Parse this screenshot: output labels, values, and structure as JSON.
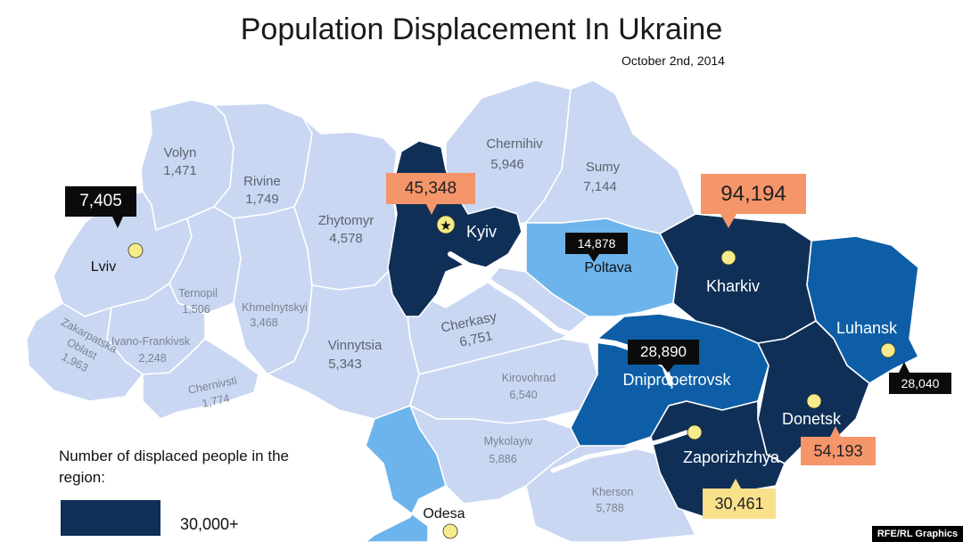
{
  "title": "Population Displacement In Ukraine",
  "date": "October 2nd, 2014",
  "colors": {
    "light": "#c9d7f2",
    "medium": "#6db4ec",
    "dark_blue": "#0d5ea6",
    "navy": "#0f2f57",
    "orange_callout": "#f5956a",
    "yellow_callout": "#f9e08a",
    "black_callout": "#0b0b0b",
    "city_dot": "#f5eb8a"
  },
  "regions": {
    "volyn": {
      "name": "Volyn",
      "value": "1,471"
    },
    "rivine": {
      "name": "Rivine",
      "value": "1,749"
    },
    "zhytomyr": {
      "name": "Zhytomyr",
      "value": "4,578"
    },
    "chernihiv": {
      "name": "Chernihiv",
      "value": "5,946"
    },
    "sumy": {
      "name": "Sumy",
      "value": "7,144"
    },
    "lviv": {
      "name": "Lviv",
      "value": "7,405"
    },
    "ternopil": {
      "name": "Ternopil",
      "value": "1,506"
    },
    "khmelnytskyi": {
      "name": "Khmelnytskyi",
      "value": "3,468"
    },
    "ivano_frankivsk": {
      "name": "Ivano-Frankivsk",
      "value": "2,248"
    },
    "zakarpatska_l1": "Zakarpatska",
    "zakarpatska_l2": "Oblast",
    "zakarpatska_value": "1,963",
    "chernivtsi": {
      "name": "Chernivsti",
      "value": "1,774"
    },
    "vinnytsia": {
      "name": "Vinnytsia",
      "value": "5,343"
    },
    "cherkasy": {
      "name": "Cherkasy",
      "value": "6,751"
    },
    "kirovohrad": {
      "name": "Kirovohrad",
      "value": "6,540"
    },
    "mykolayiv": {
      "name": "Mykolayiv",
      "value": "5,886"
    },
    "kherson": {
      "name": "Kherson",
      "value": "5,788"
    },
    "kyiv": {
      "name": "Kyiv",
      "value": "45,348"
    },
    "poltava": {
      "name": "Poltava",
      "value": "14,878"
    },
    "kharkiv": {
      "name": "Kharkiv",
      "value": "94,194"
    },
    "luhansk": {
      "name": "Luhansk",
      "value": "28,040"
    },
    "dnipropetrovsk": {
      "name": "Dnipropetrovsk",
      "value": "28,890"
    },
    "donetsk": {
      "name": "Donetsk",
      "value": "54,193"
    },
    "zaporizhzhya": {
      "name": "Zaporizhzhya",
      "value": "30,461"
    },
    "odesa": {
      "name": "Odesa"
    }
  },
  "legend": {
    "heading": "Number of displaced people in the region:",
    "item_label": "30,000+"
  },
  "credit": "RFE/RL Graphics"
}
